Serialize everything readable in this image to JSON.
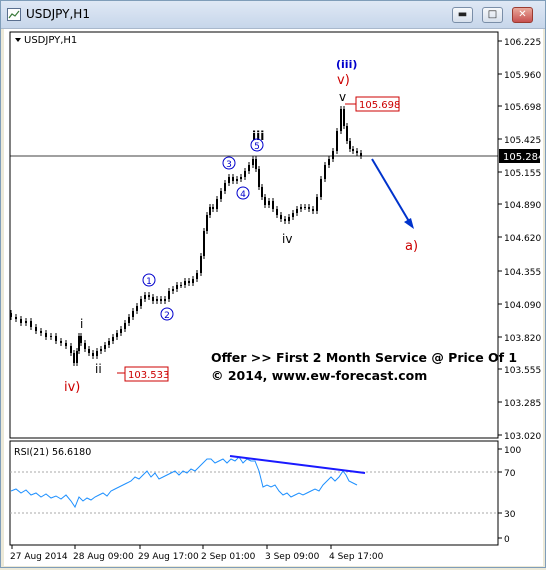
{
  "window": {
    "title": "USDJPY,H1",
    "icon": "chart-window-icon",
    "buttons": {
      "minimize": "minimize-icon",
      "maximize": "maximize-icon",
      "close": "close-icon"
    }
  },
  "main_chart": {
    "label": "USDJPY,H1",
    "price_axis_labels": [
      "106.225",
      "105.960",
      "105.698",
      "105.425",
      "105.155",
      "104.890",
      "104.620",
      "104.355",
      "104.090",
      "103.820",
      "103.555",
      "103.285",
      "103.020"
    ],
    "current_price": "105.284",
    "price_tags": {
      "high": "105.698",
      "low": "103.533"
    },
    "wave_labels": {
      "iii_circle": "(iii)",
      "v_red": "v)",
      "v_black": "v",
      "iii": "iii",
      "c5": "5",
      "c3": "3",
      "c4": "4",
      "iv": "iv",
      "c1": "1",
      "c2": "2",
      "i": "i",
      "ii": "ii",
      "iv_red": "iv)",
      "a_red": "a)"
    },
    "annotation_line1": "Offer >> First 2 Month Service @ Price Of 1",
    "annotation_line2": "© 2014, www.ew-forecast.com",
    "colors": {
      "candle": "#000000",
      "wave_blue": "#0000cc",
      "wave_red": "#cc0000",
      "forecast_arrow": "#0033cc"
    }
  },
  "rsi_panel": {
    "label": "RSI(21) 56.6180",
    "axis_labels": [
      "100",
      "70",
      "30",
      "0"
    ],
    "line_color": "#1e90ff",
    "divergence_color": "#1a1aff"
  },
  "time_axis": {
    "labels": [
      "27 Aug 2014",
      "28 Aug 09:00",
      "29 Aug 17:00",
      "2 Sep 01:00",
      "3 Sep 09:00",
      "4 Sep 17:00"
    ]
  }
}
